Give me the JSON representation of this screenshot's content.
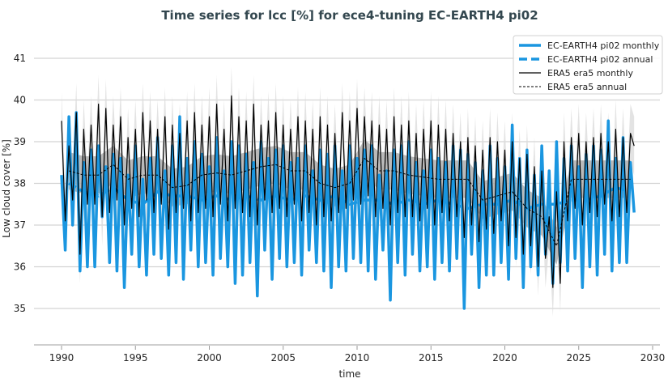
{
  "chart_data": {
    "type": "line",
    "title": "Time series for lcc [%] for ece4-tuning EC-EARTH4 pi02",
    "xlabel": "time",
    "ylabel": "Low cloud cover [%]",
    "xlim": [
      1988,
      2031
    ],
    "ylim": [
      34.1,
      41.6
    ],
    "xticks": [
      "1990",
      "1995",
      "2000",
      "2005",
      "2010",
      "2015",
      "2020",
      "2025",
      "2030"
    ],
    "yticks": [
      "35",
      "36",
      "37",
      "38",
      "39",
      "40",
      "41"
    ],
    "grid": "horizontal",
    "legend_position": "top-right",
    "colors": {
      "model": "#1a96e0",
      "era5": "#000000",
      "band_light": "#dcdcdc",
      "band_dark": "#a9a9a9"
    },
    "sampling_note": "monthly series given at quarterly sampling from 1990",
    "monthly_start": 1990.0,
    "monthly_step": 0.25,
    "annual_start": 1990.5,
    "band_halfwidth": {
      "monthly": 0.7,
      "annual": 0.45
    },
    "series": [
      {
        "name": "EC-EARTH4 pi02 monthly",
        "style": "thick-solid",
        "values": [
          38.2,
          36.4,
          39.6,
          37.0,
          39.7,
          35.9,
          38.5,
          36.0,
          38.8,
          36.0,
          38.9,
          37.2,
          38.4,
          36.1,
          38.7,
          35.9,
          38.6,
          35.5,
          38.2,
          36.3,
          38.9,
          36.0,
          38.1,
          35.8,
          38.6,
          36.3,
          39.1,
          36.2,
          38.3,
          35.8,
          38.9,
          36.1,
          39.6,
          35.7,
          38.6,
          36.4,
          39.0,
          36.0,
          38.7,
          36.1,
          38.4,
          35.8,
          39.1,
          36.2,
          38.3,
          36.0,
          39.0,
          35.6,
          38.9,
          35.8,
          38.7,
          36.1,
          38.5,
          35.3,
          39.0,
          36.4,
          38.6,
          35.7,
          38.8,
          36.2,
          38.9,
          36.0,
          38.5,
          36.1,
          38.6,
          35.8,
          38.9,
          36.4,
          38.3,
          36.1,
          38.8,
          35.9,
          38.7,
          35.5,
          38.9,
          36.0,
          38.3,
          35.9,
          38.9,
          36.2,
          38.6,
          36.1,
          38.8,
          35.9,
          38.9,
          35.7,
          38.2,
          36.4,
          38.3,
          35.2,
          38.8,
          36.1,
          38.9,
          35.8,
          39.0,
          36.3,
          38.5,
          35.9,
          38.3,
          36.0,
          38.8,
          35.7,
          38.6,
          36.1,
          38.5,
          35.9,
          38.9,
          36.2,
          38.8,
          35.0,
          38.7,
          36.3,
          38.5,
          35.5,
          38.3,
          35.8,
          38.9,
          35.8,
          38.6,
          36.1,
          38.4,
          35.7,
          39.4,
          36.2,
          38.6,
          35.5,
          38.8,
          36.0,
          38.2,
          35.8,
          38.9,
          36.3,
          38.3,
          35.6,
          39.0,
          36.1,
          38.6,
          35.9,
          38.9,
          36.2,
          38.4,
          35.5,
          38.7,
          36.0,
          38.9,
          35.8,
          38.8,
          36.3,
          39.5,
          35.9,
          38.6,
          36.1,
          39.1,
          36.1,
          38.5,
          37.3
        ]
      },
      {
        "name": "EC-EARTH4 pi02 annual",
        "style": "thick-dashed",
        "values": [
          38.0,
          37.8,
          37.7,
          37.9,
          37.6,
          37.5,
          37.8,
          37.7,
          37.7,
          37.6,
          37.7,
          37.6,
          37.7,
          37.6,
          37.7,
          37.6,
          37.7,
          37.6,
          37.7,
          37.5,
          37.6,
          37.6,
          37.5,
          37.6,
          37.5,
          37.6,
          37.5,
          37.4,
          37.5,
          37.5,
          37.6,
          37.4,
          37.5,
          37.5,
          37.6,
          37.6,
          37.7,
          37.9,
          37.8
        ]
      },
      {
        "name": "ERA5 era5 monthly",
        "style": "thin-solid",
        "values": [
          39.5,
          37.1,
          38.9,
          37.6,
          39.7,
          36.3,
          39.3,
          37.5,
          39.4,
          37.5,
          39.9,
          37.2,
          39.8,
          37.3,
          39.4,
          37.6,
          39.6,
          37.0,
          39.1,
          37.4,
          39.3,
          37.2,
          39.7,
          37.6,
          39.5,
          37.3,
          39.3,
          37.5,
          39.6,
          36.9,
          39.4,
          37.3,
          39.2,
          37.4,
          39.5,
          37.1,
          39.7,
          37.3,
          39.4,
          37.4,
          39.6,
          37.2,
          39.9,
          37.5,
          39.3,
          37.1,
          40.1,
          37.4,
          39.6,
          37.3,
          39.5,
          37.2,
          39.9,
          37.0,
          39.4,
          37.6,
          39.5,
          37.3,
          39.7,
          37.4,
          39.4,
          37.2,
          39.3,
          37.5,
          39.6,
          37.1,
          39.5,
          37.3,
          39.3,
          37.0,
          39.6,
          37.2,
          39.4,
          37.1,
          39.2,
          37.3,
          39.7,
          37.4,
          39.5,
          37.6,
          39.8,
          37.5,
          39.6,
          37.7,
          39.5,
          37.2,
          39.4,
          37.4,
          39.3,
          37.0,
          39.6,
          37.3,
          39.4,
          37.2,
          39.5,
          37.2,
          39.2,
          37.1,
          39.3,
          37.4,
          39.5,
          37.0,
          39.4,
          37.3,
          39.3,
          37.1,
          39.2,
          37.2,
          39.0,
          36.7,
          39.1,
          37.0,
          38.9,
          36.6,
          38.8,
          36.9,
          39.1,
          36.8,
          39.0,
          37.1,
          38.8,
          36.5,
          39.0,
          36.7,
          38.6,
          36.3,
          38.7,
          36.5,
          38.4,
          36.0,
          38.3,
          36.2,
          37.2,
          35.5,
          37.8,
          35.6,
          39.0,
          37.1,
          39.1,
          37.4,
          39.2,
          37.0,
          39.0,
          37.3,
          39.1,
          37.2,
          39.2,
          37.5,
          39.0,
          37.1,
          39.3,
          37.2,
          39.1,
          37.3,
          39.2,
          38.9
        ]
      },
      {
        "name": "ERA5 era5 annual",
        "style": "thin-dashed",
        "values": [
          38.3,
          38.2,
          38.2,
          38.45,
          38.1,
          38.2,
          38.2,
          37.9,
          37.95,
          38.2,
          38.25,
          38.2,
          38.3,
          38.4,
          38.45,
          38.3,
          38.3,
          38.0,
          37.9,
          38.0,
          38.6,
          38.3,
          38.3,
          38.2,
          38.15,
          38.1,
          38.1,
          38.1,
          37.6,
          37.7,
          37.8,
          37.4,
          37.2,
          36.5,
          38.1,
          38.1,
          38.1,
          38.1,
          38.1
        ]
      }
    ]
  }
}
